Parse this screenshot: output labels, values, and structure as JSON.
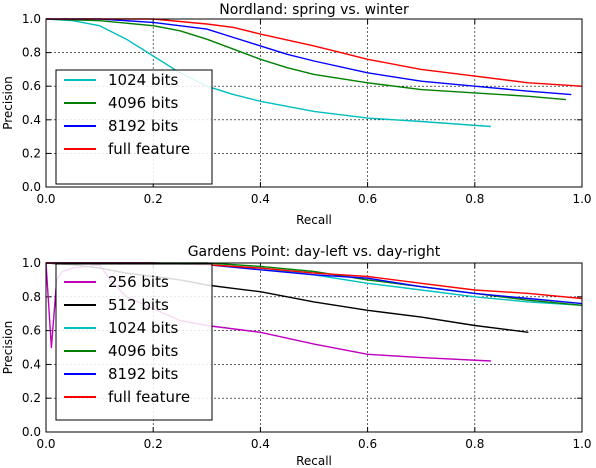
{
  "chart_data": [
    {
      "type": "line",
      "title": "Nordland: spring vs. winter",
      "xlabel": "Recall",
      "ylabel": "Precision",
      "xlim": [
        0.0,
        1.0
      ],
      "ylim": [
        0.0,
        1.0
      ],
      "xticks": [
        "0.0",
        "0.2",
        "0.4",
        "0.6",
        "0.8",
        "1.0"
      ],
      "yticks": [
        "0.0",
        "0.2",
        "0.4",
        "0.6",
        "0.8",
        "1.0"
      ],
      "grid": true,
      "legend_position": "bottom-left",
      "series": [
        {
          "name": "1024 bits",
          "color": "#00bfbf",
          "x": [
            0.0,
            0.05,
            0.1,
            0.15,
            0.2,
            0.25,
            0.3,
            0.35,
            0.4,
            0.5,
            0.6,
            0.7,
            0.83
          ],
          "y": [
            1.0,
            0.99,
            0.96,
            0.88,
            0.78,
            0.68,
            0.6,
            0.55,
            0.51,
            0.45,
            0.41,
            0.39,
            0.36
          ]
        },
        {
          "name": "4096 bits",
          "color": "#008000",
          "x": [
            0.0,
            0.1,
            0.2,
            0.25,
            0.3,
            0.35,
            0.4,
            0.45,
            0.5,
            0.6,
            0.7,
            0.8,
            0.9,
            0.97
          ],
          "y": [
            1.0,
            0.99,
            0.96,
            0.93,
            0.88,
            0.82,
            0.76,
            0.71,
            0.67,
            0.62,
            0.58,
            0.56,
            0.54,
            0.52
          ]
        },
        {
          "name": "8192 bits",
          "color": "#0000ff",
          "x": [
            0.0,
            0.1,
            0.2,
            0.3,
            0.35,
            0.4,
            0.45,
            0.5,
            0.6,
            0.7,
            0.8,
            0.9,
            0.98
          ],
          "y": [
            1.0,
            1.0,
            0.98,
            0.94,
            0.89,
            0.84,
            0.79,
            0.75,
            0.68,
            0.63,
            0.6,
            0.57,
            0.55
          ]
        },
        {
          "name": "full feature",
          "color": "#ff0000",
          "x": [
            0.0,
            0.1,
            0.2,
            0.3,
            0.35,
            0.4,
            0.5,
            0.55,
            0.6,
            0.7,
            0.8,
            0.9,
            1.0
          ],
          "y": [
            1.0,
            1.0,
            1.0,
            0.97,
            0.95,
            0.91,
            0.84,
            0.8,
            0.76,
            0.7,
            0.66,
            0.62,
            0.6
          ]
        }
      ]
    },
    {
      "type": "line",
      "title": "Gardens Point: day-left vs. day-right",
      "xlabel": "Recall",
      "ylabel": "Precision",
      "xlim": [
        0.0,
        1.0
      ],
      "ylim": [
        0.0,
        1.0
      ],
      "xticks": [
        "0.0",
        "0.2",
        "0.4",
        "0.6",
        "0.8",
        "1.0"
      ],
      "yticks": [
        "0.0",
        "0.2",
        "0.4",
        "0.6",
        "0.8",
        "1.0"
      ],
      "grid": true,
      "legend_position": "bottom-left",
      "series": [
        {
          "name": "256 bits",
          "color": "#bf00bf",
          "x": [
            0.0,
            0.01,
            0.02,
            0.03,
            0.05,
            0.08,
            0.1,
            0.12,
            0.15,
            0.2,
            0.25,
            0.3,
            0.4,
            0.5,
            0.6,
            0.7,
            0.83
          ],
          "y": [
            1.0,
            0.5,
            0.9,
            0.95,
            0.97,
            0.98,
            0.99,
            0.9,
            0.8,
            0.73,
            0.66,
            0.63,
            0.59,
            0.52,
            0.46,
            0.44,
            0.42
          ]
        },
        {
          "name": "512 bits",
          "color": "#000000",
          "x": [
            0.0,
            0.05,
            0.1,
            0.15,
            0.2,
            0.25,
            0.3,
            0.35,
            0.4,
            0.45,
            0.5,
            0.6,
            0.7,
            0.8,
            0.9
          ],
          "y": [
            1.0,
            0.99,
            0.97,
            0.94,
            0.92,
            0.9,
            0.87,
            0.85,
            0.83,
            0.8,
            0.77,
            0.72,
            0.68,
            0.63,
            0.59
          ]
        },
        {
          "name": "1024 bits",
          "color": "#00bfbf",
          "x": [
            0.0,
            0.1,
            0.2,
            0.3,
            0.4,
            0.5,
            0.6,
            0.7,
            0.8,
            0.9,
            1.0
          ],
          "y": [
            1.0,
            1.0,
            1.0,
            0.99,
            0.97,
            0.93,
            0.88,
            0.84,
            0.8,
            0.77,
            0.75
          ]
        },
        {
          "name": "4096 bits",
          "color": "#008000",
          "x": [
            0.0,
            0.1,
            0.2,
            0.3,
            0.4,
            0.5,
            0.6,
            0.7,
            0.8,
            0.9,
            1.0
          ],
          "y": [
            1.0,
            1.0,
            1.0,
            1.0,
            0.98,
            0.95,
            0.9,
            0.86,
            0.82,
            0.78,
            0.75
          ]
        },
        {
          "name": "8192 bits",
          "color": "#0000ff",
          "x": [
            0.0,
            0.1,
            0.2,
            0.3,
            0.4,
            0.5,
            0.6,
            0.7,
            0.8,
            0.9,
            1.0
          ],
          "y": [
            1.0,
            1.0,
            1.0,
            0.99,
            0.96,
            0.93,
            0.91,
            0.86,
            0.82,
            0.79,
            0.76
          ]
        },
        {
          "name": "full feature",
          "color": "#ff0000",
          "x": [
            0.0,
            0.1,
            0.2,
            0.3,
            0.4,
            0.5,
            0.6,
            0.7,
            0.8,
            0.9,
            1.0
          ],
          "y": [
            1.0,
            1.0,
            1.0,
            0.99,
            0.97,
            0.94,
            0.92,
            0.88,
            0.84,
            0.82,
            0.79
          ]
        }
      ]
    }
  ]
}
